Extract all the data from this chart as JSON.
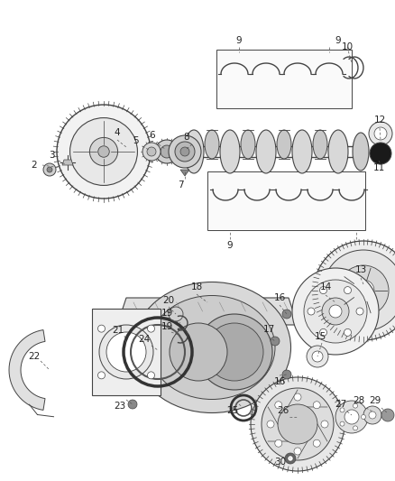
{
  "bg_color": "#ffffff",
  "line_color": "#444444",
  "fig_width": 4.38,
  "fig_height": 5.33,
  "dpi": 100
}
